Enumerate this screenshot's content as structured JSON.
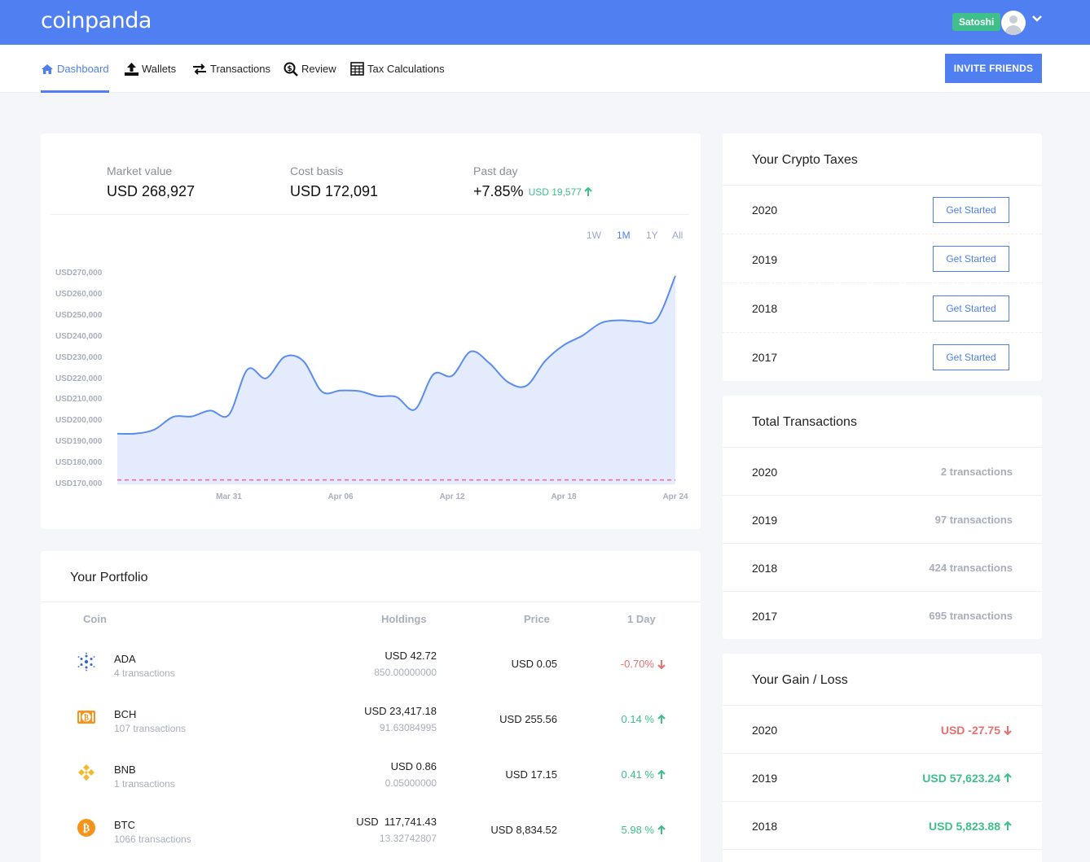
{
  "header": {
    "logo": "coinpanda",
    "user": "Satoshi"
  },
  "nav": {
    "items": [
      {
        "label": "Dashboard",
        "icon": "home-icon"
      },
      {
        "label": "Wallets",
        "icon": "upload-icon"
      },
      {
        "label": "Transactions",
        "icon": "arrows-icon"
      },
      {
        "label": "Review",
        "icon": "search-dollar-icon"
      },
      {
        "label": "Tax Calculations",
        "icon": "calculator-icon"
      }
    ],
    "invite": "INVITE FRIENDS"
  },
  "summary": {
    "market_label": "Market value",
    "market_value": "USD 268,927",
    "cost_label": "Cost basis",
    "cost_value": "USD 172,091",
    "day_label": "Past day",
    "day_value": "+7.85%",
    "day_usd": "USD 19,577"
  },
  "ranges": [
    "1W",
    "1M",
    "1Y",
    "All"
  ],
  "chart_data": {
    "type": "area",
    "y_ticks": [
      "USD270,000",
      "USD260,000",
      "USD250,000",
      "USD240,000",
      "USD230,000",
      "USD220,000",
      "USD210,000",
      "USD200,000",
      "USD190,000",
      "USD180,000",
      "USD170,000"
    ],
    "x_ticks": [
      "Mar 31",
      "Apr 06",
      "Apr 12",
      "Apr 18",
      "Apr 24"
    ],
    "ylim": [
      170000,
      270000
    ],
    "cost_basis_line": 172091,
    "series": [
      {
        "values": [
          194000,
          194100,
          196000,
          202000,
          202200,
          205000,
          203000,
          224500,
          220300,
          230500,
          228500,
          214000,
          214500,
          214200,
          211800,
          211500,
          205500,
          222200,
          221500,
          233000,
          227500,
          218500,
          216800,
          228500,
          236000,
          240500,
          246500,
          247800,
          247300,
          248200,
          268900
        ]
      }
    ]
  },
  "portfolio": {
    "title": "Your Portfolio",
    "headers": {
      "coin": "Coin",
      "holdings": "Holdings",
      "price": "Price",
      "day": "1 Day"
    },
    "rows": [
      {
        "icon": "cardano-icon",
        "symbol": "ADA",
        "tx": "4 transactions",
        "usd": "USD 42.72",
        "amount": "850.00000000",
        "price": "USD 0.05",
        "change": "-0.70%",
        "dir": "down"
      },
      {
        "icon": "bitcoin-cash-icon",
        "symbol": "BCH",
        "tx": "107 transactions",
        "usd": "USD 23,417.18",
        "amount": "91.63084995",
        "price": "USD 255.56",
        "change": "0.14 %",
        "dir": "up"
      },
      {
        "icon": "binance-icon",
        "symbol": "BNB",
        "tx": "1 transactions",
        "usd": "USD 0.86",
        "amount": "0.05000000",
        "price": "USD 17.15",
        "change": "0.41 %",
        "dir": "up"
      },
      {
        "icon": "bitcoin-icon",
        "symbol": "BTC",
        "tx": "1066 transactions",
        "usd": "USD  117,741.43",
        "amount": "13.32742807",
        "price": "USD 8,834.52",
        "change": "5.98 %",
        "dir": "up"
      }
    ]
  },
  "taxes": {
    "title": "Your Crypto Taxes",
    "button": "Get Started",
    "years": [
      "2020",
      "2019",
      "2018",
      "2017"
    ]
  },
  "transactions": {
    "title": "Total Transactions",
    "rows": [
      {
        "year": "2020",
        "count": "2 transactions"
      },
      {
        "year": "2019",
        "count": "97 transactions"
      },
      {
        "year": "2018",
        "count": "424 transactions"
      },
      {
        "year": "2017",
        "count": "695 transactions"
      }
    ]
  },
  "gainloss": {
    "title": "Your Gain / Loss",
    "rows": [
      {
        "year": "2020",
        "value": "USD -27.75",
        "dir": "down"
      },
      {
        "year": "2019",
        "value": "USD 57,623.24",
        "dir": "up"
      },
      {
        "year": "2018",
        "value": "USD 5,823.88",
        "dir": "up"
      }
    ]
  },
  "colors": {
    "primary": "#4f7ff0",
    "green": "#3fbf8a",
    "red": "#e8706e"
  }
}
